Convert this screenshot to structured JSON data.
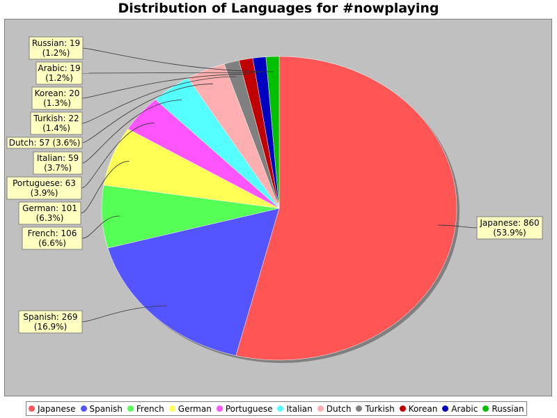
{
  "chart_data": {
    "type": "pie",
    "title": "Distribution of Languages for #nowplaying",
    "slices": [
      {
        "name": "Japanese",
        "value": 860,
        "percent": "53.9%",
        "color": "#ff5555"
      },
      {
        "name": "Spanish",
        "value": 269,
        "percent": "16.9%",
        "color": "#5555ff"
      },
      {
        "name": "French",
        "value": 106,
        "percent": "6.6%",
        "color": "#55ff55"
      },
      {
        "name": "German",
        "value": 101,
        "percent": "6.3%",
        "color": "#ffff55"
      },
      {
        "name": "Portuguese",
        "value": 63,
        "percent": "3.9%",
        "color": "#ff55ff"
      },
      {
        "name": "Italian",
        "value": 59,
        "percent": "3.7%",
        "color": "#55ffff"
      },
      {
        "name": "Dutch",
        "value": 57,
        "percent": "3.6%",
        "color": "#ffafaf"
      },
      {
        "name": "Turkish",
        "value": 22,
        "percent": "1.4%",
        "color": "#808080"
      },
      {
        "name": "Korean",
        "value": 20,
        "percent": "1.3%",
        "color": "#c00000"
      },
      {
        "name": "Arabic",
        "value": 19,
        "percent": "1.2%",
        "color": "#0000c0"
      },
      {
        "name": "Russian",
        "value": 19,
        "percent": "1.2%",
        "color": "#00c000"
      }
    ],
    "legend_position": "bottom",
    "background_color": "#c0c0c0"
  }
}
